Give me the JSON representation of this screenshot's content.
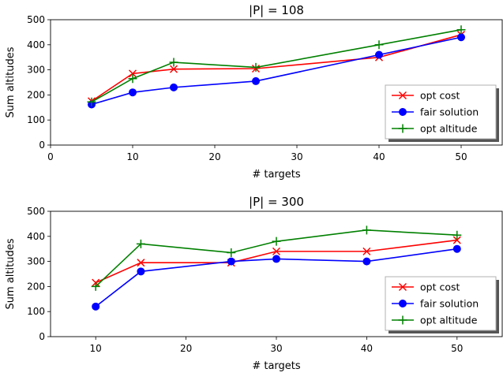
{
  "colors": {
    "opt_cost": "#ff0000",
    "fair_solution": "#0000ff",
    "opt_altitude": "#008000"
  },
  "chart_data": [
    {
      "type": "line",
      "title": "|P| = 108",
      "xlabel": "# targets",
      "ylabel": "Sum altitudes",
      "xlim": [
        0,
        55
      ],
      "ylim": [
        0,
        500
      ],
      "xticks": [
        "0",
        "10",
        "20",
        "30",
        "40",
        "50"
      ],
      "yticks": [
        "0",
        "100",
        "200",
        "300",
        "400",
        "500"
      ],
      "grid": false,
      "legend_position": "lower-right",
      "x": [
        5,
        10,
        15,
        25,
        40,
        50
      ],
      "series": [
        {
          "name": "opt cost",
          "marker": "x",
          "color": "#ff0000",
          "values": [
            175,
            285,
            303,
            305,
            350,
            440
          ]
        },
        {
          "name": "fair solution",
          "marker": "o",
          "color": "#0000ff",
          "values": [
            162,
            210,
            230,
            255,
            360,
            430
          ]
        },
        {
          "name": "opt altitude",
          "marker": "+",
          "color": "#008000",
          "values": [
            172,
            265,
            330,
            310,
            400,
            460
          ]
        }
      ]
    },
    {
      "type": "line",
      "title": "|P| = 300",
      "xlabel": "# targets",
      "ylabel": "Sum altitudes",
      "xlim": [
        5,
        55
      ],
      "ylim": [
        0,
        500
      ],
      "xticks": [
        "10",
        "20",
        "30",
        "40",
        "50"
      ],
      "yticks": [
        "0",
        "100",
        "200",
        "300",
        "400",
        "500"
      ],
      "grid": false,
      "legend_position": "lower-right",
      "x": [
        10,
        15,
        25,
        30,
        40,
        50
      ],
      "series": [
        {
          "name": "opt cost",
          "marker": "x",
          "color": "#ff0000",
          "values": [
            215,
            295,
            295,
            340,
            340,
            385
          ]
        },
        {
          "name": "fair solution",
          "marker": "o",
          "color": "#0000ff",
          "values": [
            120,
            260,
            300,
            310,
            300,
            350
          ]
        },
        {
          "name": "opt altitude",
          "marker": "+",
          "color": "#008000",
          "values": [
            200,
            370,
            335,
            380,
            425,
            405
          ]
        }
      ]
    }
  ]
}
